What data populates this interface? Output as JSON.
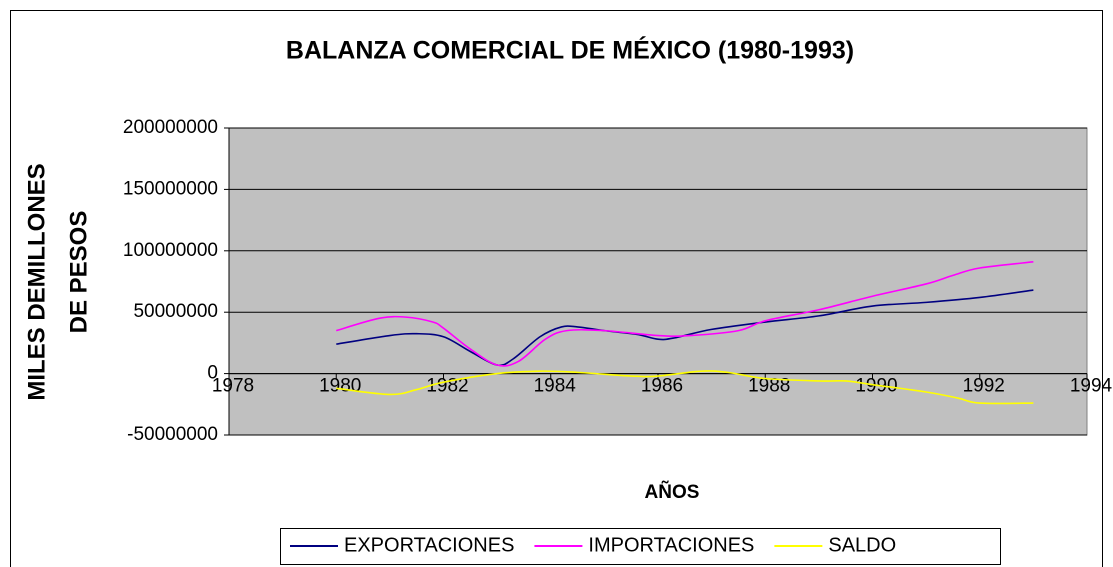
{
  "chart_data": {
    "type": "line",
    "title": "BALANZA COMERCIAL DE MÉXICO (1980-1993)",
    "y_label": [
      "MILES DEMILLONES",
      "DE PESOS"
    ],
    "x_label": "AÑOS",
    "xlim": [
      1978,
      1994
    ],
    "xticks": [
      1978,
      1980,
      1982,
      1984,
      1986,
      1988,
      1990,
      1992,
      1994
    ],
    "ylim": [
      -50000000,
      200000000
    ],
    "yticks": [
      -50000000,
      0,
      50000000,
      100000000,
      150000000,
      200000000
    ],
    "grid": true,
    "plot_background": "#c0c0c0",
    "legend": "bottom",
    "series": [
      {
        "name": "EXPORTACIONES",
        "color": "#000080",
        "x": [
          1980,
          1981,
          1981.5,
          1982,
          1982.5,
          1983,
          1983.3,
          1983.8,
          1984.2,
          1984.5,
          1985,
          1985.6,
          1986,
          1986.3,
          1987,
          1988,
          1989,
          1990,
          1991,
          1992,
          1993
        ],
        "values": [
          24000000,
          31000000,
          32500000,
          30000000,
          18000000,
          7000000,
          12000000,
          30000000,
          38000000,
          38000000,
          35000000,
          32000000,
          28000000,
          29000000,
          36000000,
          42000000,
          47000000,
          55000000,
          58000000,
          62000000,
          68000000
        ]
      },
      {
        "name": "IMPORTACIONES",
        "color": "#ff00ff",
        "x": [
          1980,
          1980.8,
          1981.3,
          1981.8,
          1982,
          1982.5,
          1983,
          1983.4,
          1983.9,
          1984.3,
          1985,
          1986,
          1986.6,
          1987.5,
          1988,
          1989,
          1990,
          1991,
          1991.5,
          1992,
          1993
        ],
        "values": [
          35000000,
          45000000,
          46000000,
          42000000,
          37000000,
          20000000,
          7000000,
          10000000,
          28000000,
          35000000,
          35000000,
          31000000,
          31000000,
          35000000,
          43000000,
          52000000,
          63000000,
          73000000,
          80000000,
          86000000,
          91000000
        ]
      },
      {
        "name": "SALDO",
        "color": "#ffff00",
        "x": [
          1980,
          1981,
          1981.5,
          1982,
          1983,
          1983.8,
          1984.5,
          1985.5,
          1986,
          1986.8,
          1987.3,
          1988,
          1989,
          1989.5,
          1990,
          1991,
          1991.6,
          1992,
          1993
        ],
        "values": [
          -12000000,
          -17000000,
          -13000000,
          -7000000,
          0,
          2000000,
          1000000,
          -2000000,
          -2000000,
          2000000,
          1000000,
          -4000000,
          -6000000,
          -6000000,
          -9000000,
          -15000000,
          -20000000,
          -24000000,
          -24000000
        ]
      }
    ]
  }
}
